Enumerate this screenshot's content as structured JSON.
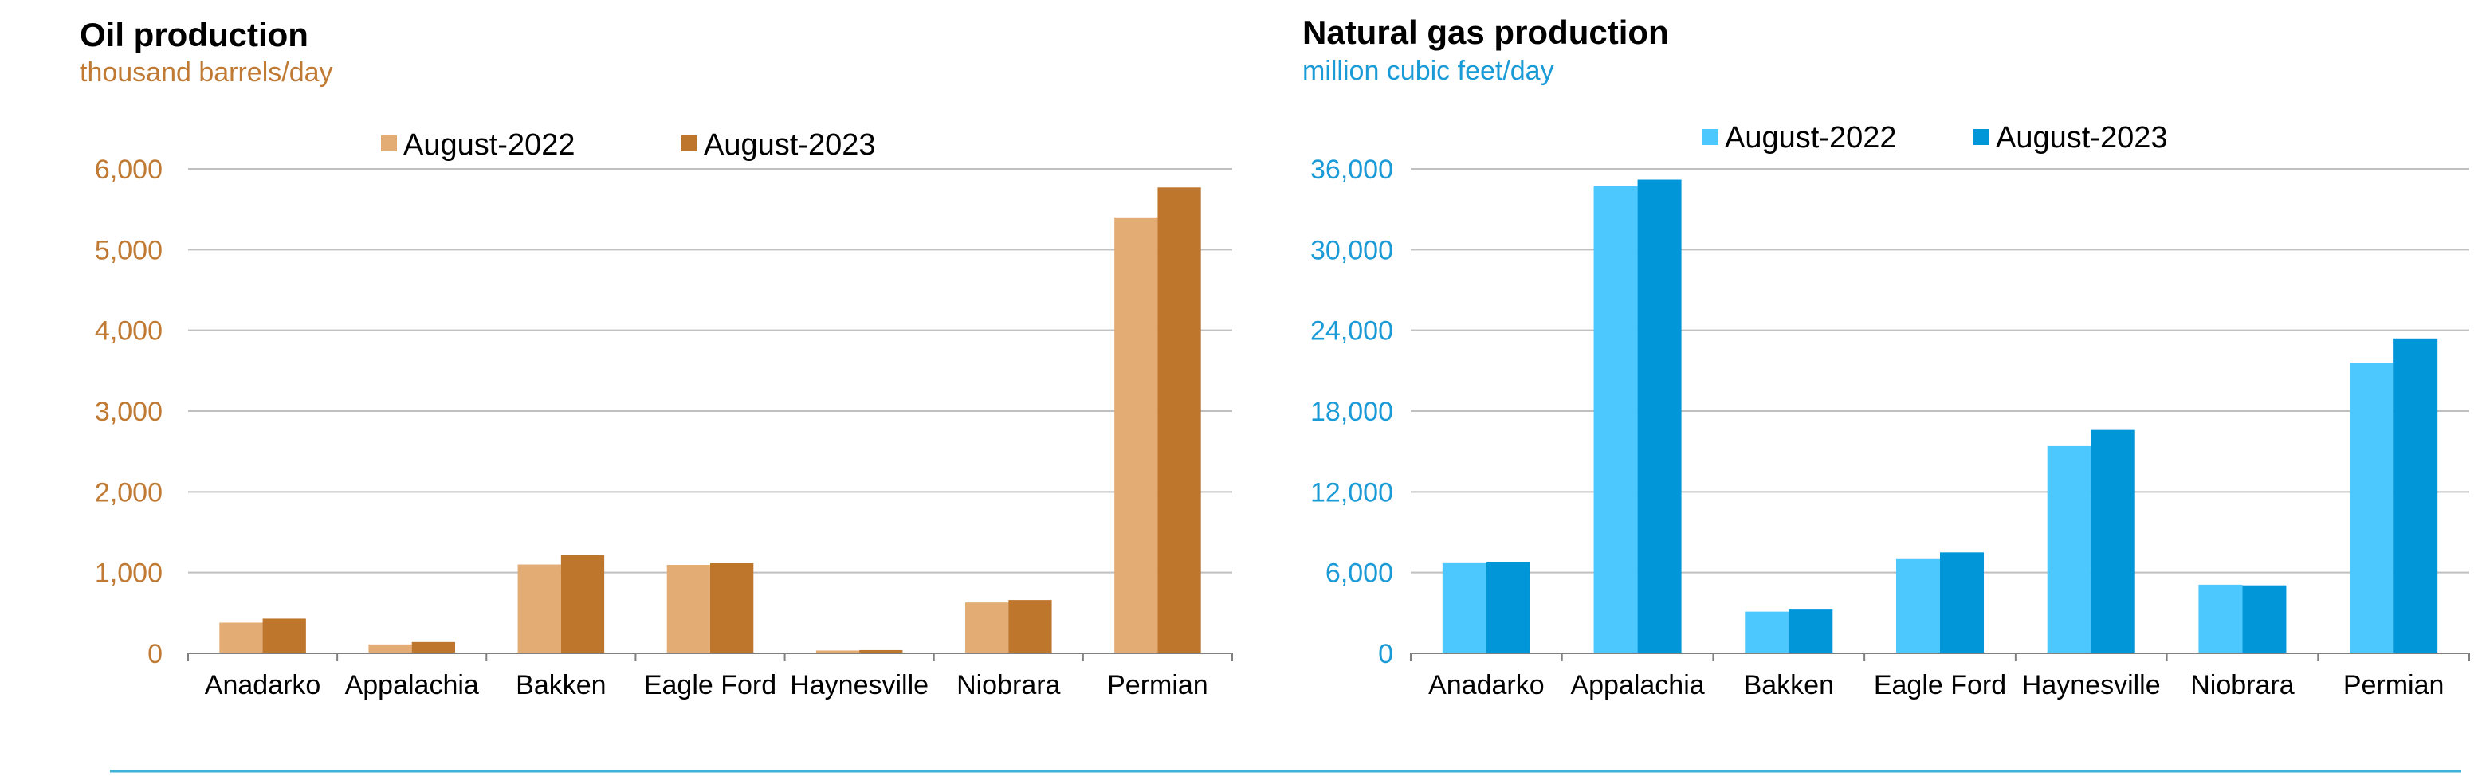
{
  "colors": {
    "oil_2022": "#E2AC74",
    "oil_2023": "#BE752C",
    "oil_axis": "#C07A33",
    "gas_2022": "#4DC8FF",
    "gas_2023": "#0096D8",
    "gas_axis": "#1A9BD7",
    "gridline": "#BFBFBF",
    "footer_line": "#3FB0D6"
  },
  "chart_data": [
    {
      "type": "bar",
      "title": "Oil production",
      "subtitle": "thousand barrels/day",
      "categories": [
        "Anadarko",
        "Appalachia",
        "Bakken",
        "Eagle Ford",
        "Haynesville",
        "Niobrara",
        "Permian"
      ],
      "series": [
        {
          "name": "August-2022",
          "values": [
            380,
            110,
            1100,
            1095,
            35,
            630,
            5400
          ]
        },
        {
          "name": "August-2023",
          "values": [
            430,
            140,
            1220,
            1115,
            40,
            660,
            5770
          ]
        }
      ],
      "ylim": [
        0,
        6000
      ],
      "yticks": [
        0,
        1000,
        2000,
        3000,
        4000,
        5000,
        6000
      ],
      "ytick_labels": [
        "0",
        "1,000",
        "2,000",
        "3,000",
        "4,000",
        "5,000",
        "6,000"
      ],
      "grid": true,
      "legend_placement": "top-center"
    },
    {
      "type": "bar",
      "title": "Natural gas production",
      "subtitle": "million cubic feet/day",
      "categories": [
        "Anadarko",
        "Appalachia",
        "Bakken",
        "Eagle Ford",
        "Haynesville",
        "Niobrara",
        "Permian"
      ],
      "series": [
        {
          "name": "August-2022",
          "values": [
            6700,
            34700,
            3100,
            7000,
            15400,
            5100,
            21600
          ]
        },
        {
          "name": "August-2023",
          "values": [
            6750,
            35200,
            3250,
            7500,
            16600,
            5050,
            23400
          ]
        }
      ],
      "ylim": [
        0,
        36000
      ],
      "yticks": [
        0,
        6000,
        12000,
        18000,
        24000,
        30000,
        36000
      ],
      "ytick_labels": [
        "0",
        "6,000",
        "12,000",
        "18,000",
        "24,000",
        "30,000",
        "36,000"
      ],
      "grid": true,
      "legend_placement": "top-center"
    }
  ]
}
